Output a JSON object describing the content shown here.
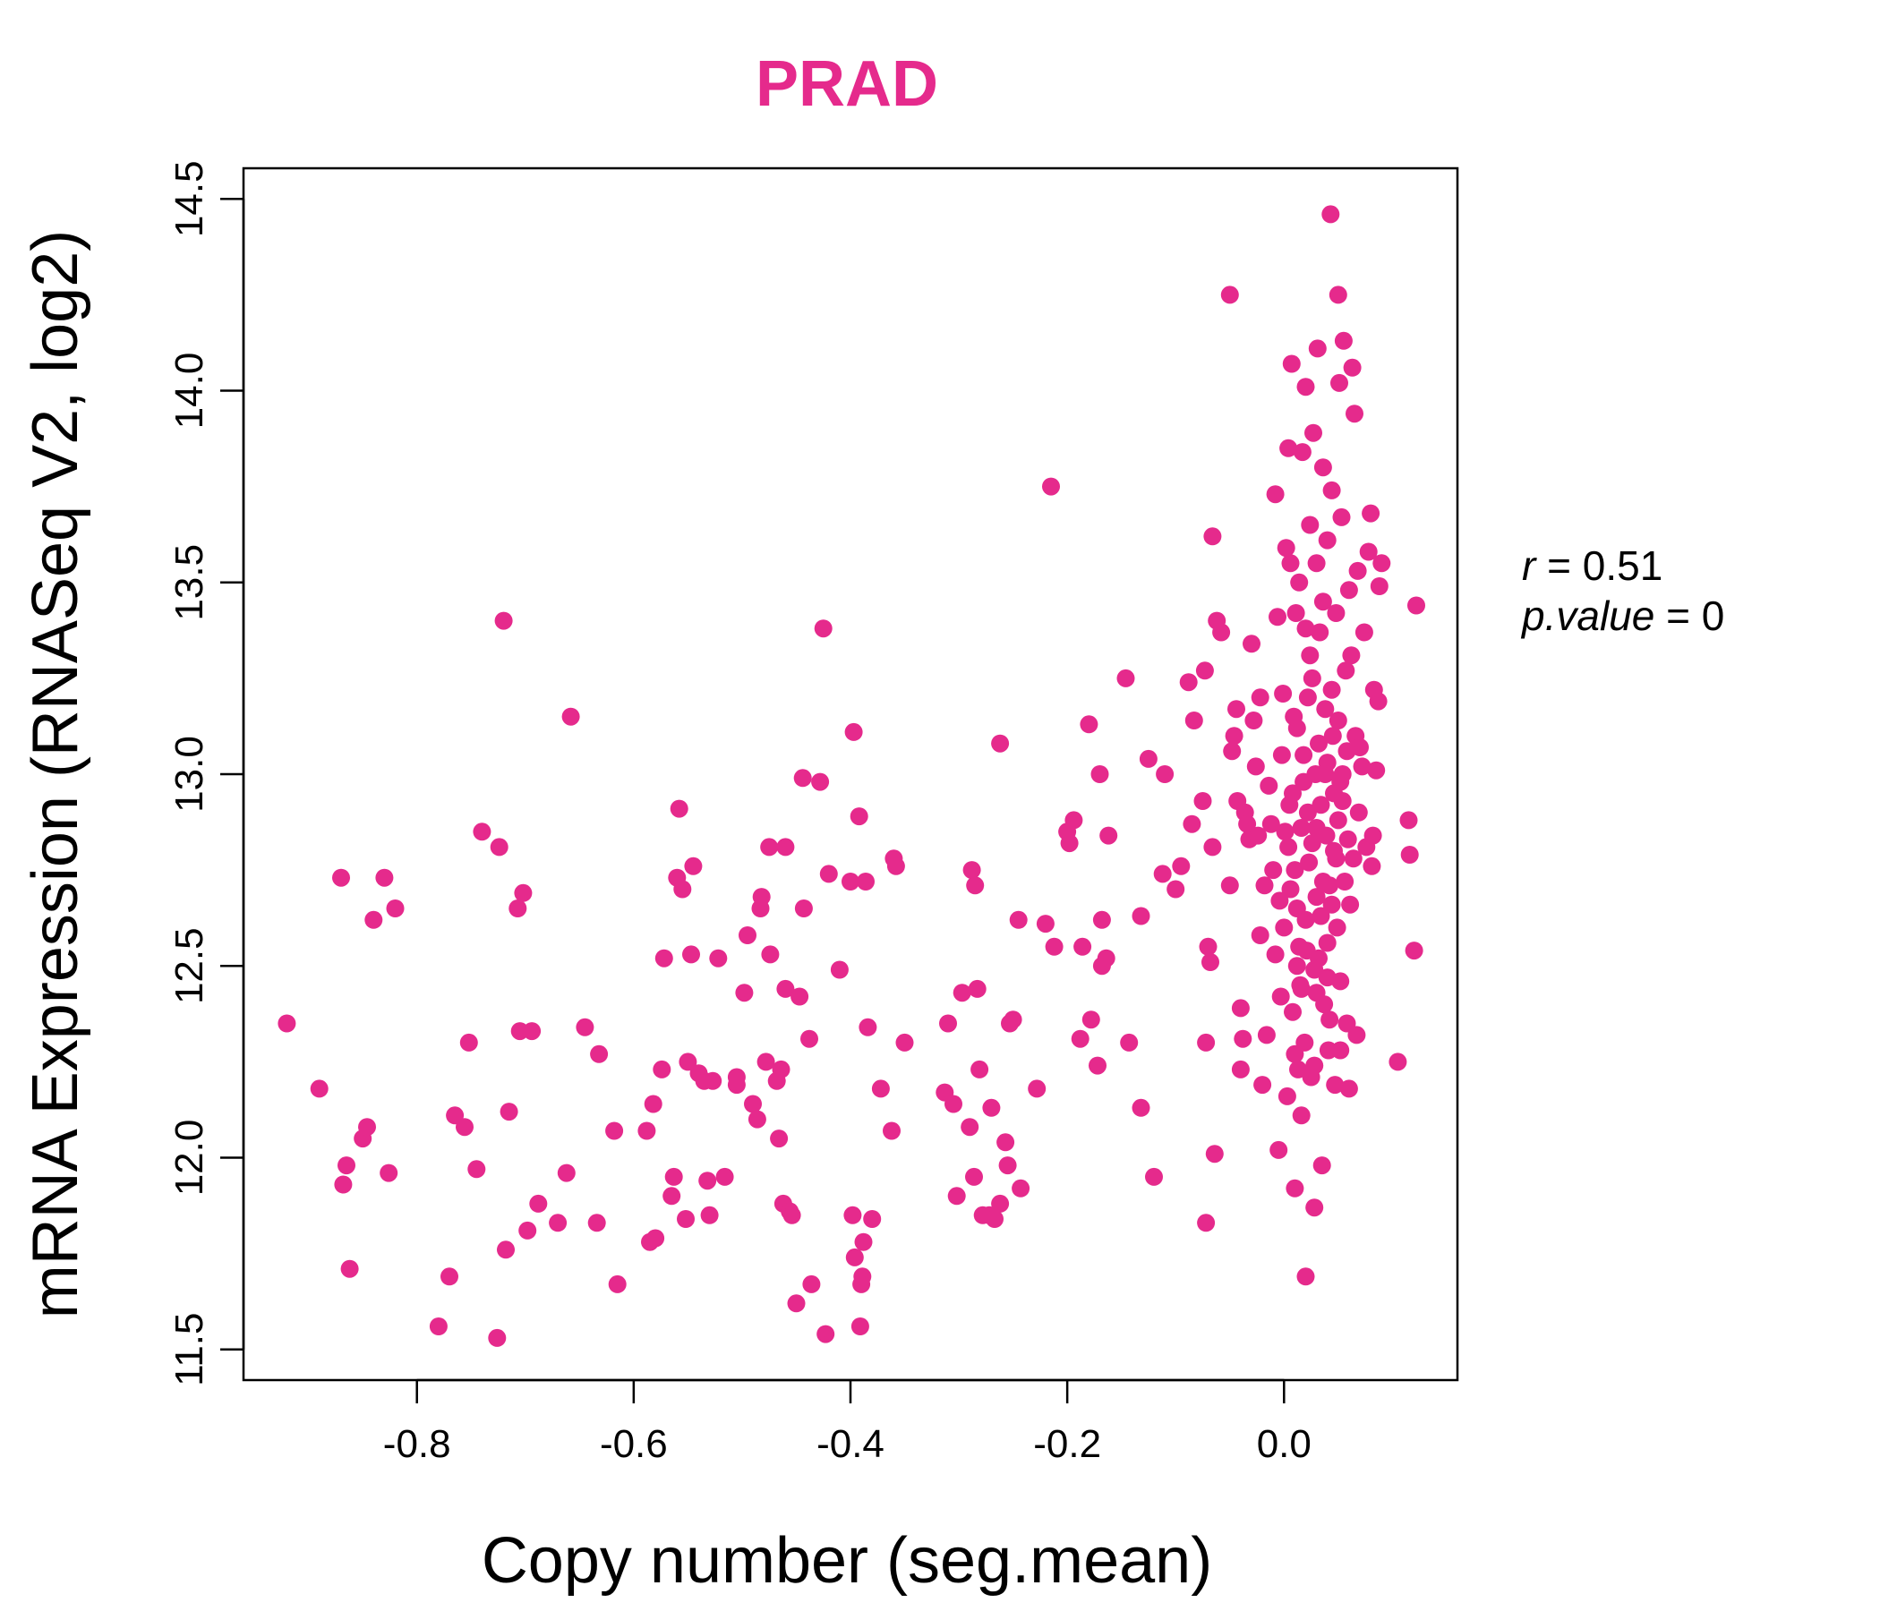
{
  "colors": {
    "point": "#E52A8C",
    "title": "#E52A8C",
    "axis": "#000000"
  },
  "stats": {
    "r_label": "r",
    "r_value": "0.51",
    "p_label": "p.value",
    "p_value": "0"
  },
  "chart_data": {
    "type": "scatter",
    "title": "PRAD",
    "xlabel": "Copy number (seg.mean)",
    "ylabel": "mRNA Expression (RNASeq V2, log2)",
    "xlim": [
      -0.96,
      0.16
    ],
    "ylim": [
      11.42,
      14.58
    ],
    "xticks": [
      -0.8,
      -0.6,
      -0.4,
      -0.2,
      0.0
    ],
    "xtick_labels": [
      "-0.8",
      "-0.6",
      "-0.4",
      "-0.2",
      "0.0"
    ],
    "yticks": [
      11.5,
      12.0,
      12.5,
      13.0,
      13.5,
      14.0,
      14.5
    ],
    "ytick_labels": [
      "11.5",
      "12.0",
      "12.5",
      "13.0",
      "13.5",
      "14.0",
      "14.5"
    ],
    "grid": false,
    "legend": "none",
    "points": [
      [
        -0.92,
        12.35
      ],
      [
        -0.89,
        12.18
      ],
      [
        -0.87,
        12.73
      ],
      [
        -0.865,
        11.98
      ],
      [
        -0.868,
        11.93
      ],
      [
        -0.862,
        11.71
      ],
      [
        -0.85,
        12.05
      ],
      [
        -0.846,
        12.08
      ],
      [
        -0.84,
        12.62
      ],
      [
        -0.83,
        12.73
      ],
      [
        -0.826,
        11.96
      ],
      [
        -0.82,
        12.65
      ],
      [
        -0.78,
        11.56
      ],
      [
        -0.77,
        11.69
      ],
      [
        -0.765,
        12.11
      ],
      [
        -0.756,
        12.08
      ],
      [
        -0.752,
        12.3
      ],
      [
        -0.745,
        11.97
      ],
      [
        -0.74,
        12.85
      ],
      [
        -0.726,
        11.53
      ],
      [
        -0.724,
        12.81
      ],
      [
        -0.718,
        11.76
      ],
      [
        -0.72,
        13.4
      ],
      [
        -0.715,
        12.12
      ],
      [
        -0.707,
        12.65
      ],
      [
        -0.705,
        12.33
      ],
      [
        -0.702,
        12.69
      ],
      [
        -0.698,
        11.81
      ],
      [
        -0.694,
        12.33
      ],
      [
        -0.688,
        11.88
      ],
      [
        -0.67,
        11.83
      ],
      [
        -0.662,
        11.96
      ],
      [
        -0.658,
        13.15
      ],
      [
        -0.645,
        12.34
      ],
      [
        -0.634,
        11.83
      ],
      [
        -0.632,
        12.27
      ],
      [
        -0.618,
        12.07
      ],
      [
        -0.615,
        11.67
      ],
      [
        -0.588,
        12.07
      ],
      [
        -0.585,
        11.78
      ],
      [
        -0.582,
        12.14
      ],
      [
        -0.58,
        11.79
      ],
      [
        -0.574,
        12.23
      ],
      [
        -0.572,
        12.52
      ],
      [
        -0.565,
        11.9
      ],
      [
        -0.563,
        11.95
      ],
      [
        -0.56,
        12.73
      ],
      [
        -0.558,
        12.91
      ],
      [
        -0.555,
        12.7
      ],
      [
        -0.552,
        11.84
      ],
      [
        -0.55,
        12.25
      ],
      [
        -0.547,
        12.53
      ],
      [
        -0.545,
        12.76
      ],
      [
        -0.54,
        12.22
      ],
      [
        -0.535,
        12.2
      ],
      [
        -0.532,
        11.94
      ],
      [
        -0.53,
        11.85
      ],
      [
        -0.527,
        12.2
      ],
      [
        -0.522,
        12.52
      ],
      [
        -0.516,
        11.95
      ],
      [
        -0.505,
        12.21
      ],
      [
        -0.505,
        12.19
      ],
      [
        -0.498,
        12.43
      ],
      [
        -0.495,
        12.58
      ],
      [
        -0.49,
        12.14
      ],
      [
        -0.486,
        12.1
      ],
      [
        -0.483,
        12.65
      ],
      [
        -0.482,
        12.68
      ],
      [
        -0.478,
        12.25
      ],
      [
        -0.475,
        12.81
      ],
      [
        -0.474,
        12.53
      ],
      [
        -0.468,
        12.2
      ],
      [
        -0.466,
        12.05
      ],
      [
        -0.464,
        12.23
      ],
      [
        -0.462,
        11.88
      ],
      [
        -0.46,
        12.81
      ],
      [
        -0.46,
        12.44
      ],
      [
        -0.456,
        11.86
      ],
      [
        -0.454,
        11.85
      ],
      [
        -0.45,
        11.62
      ],
      [
        -0.447,
        12.42
      ],
      [
        -0.444,
        12.99
      ],
      [
        -0.443,
        12.65
      ],
      [
        -0.438,
        12.31
      ],
      [
        -0.436,
        11.67
      ],
      [
        -0.428,
        12.98
      ],
      [
        -0.425,
        13.38
      ],
      [
        -0.423,
        11.54
      ],
      [
        -0.42,
        12.74
      ],
      [
        -0.41,
        12.49
      ],
      [
        -0.4,
        12.72
      ],
      [
        -0.398,
        11.85
      ],
      [
        -0.397,
        13.11
      ],
      [
        -0.396,
        11.74
      ],
      [
        -0.392,
        12.89
      ],
      [
        -0.391,
        11.56
      ],
      [
        -0.39,
        11.67
      ],
      [
        -0.389,
        11.69
      ],
      [
        -0.388,
        11.78
      ],
      [
        -0.386,
        12.72
      ],
      [
        -0.384,
        12.34
      ],
      [
        -0.38,
        11.84
      ],
      [
        -0.372,
        12.18
      ],
      [
        -0.362,
        12.07
      ],
      [
        -0.36,
        12.78
      ],
      [
        -0.358,
        12.76
      ],
      [
        -0.35,
        12.3
      ],
      [
        -0.313,
        12.17
      ],
      [
        -0.31,
        12.35
      ],
      [
        -0.305,
        12.14
      ],
      [
        -0.302,
        11.9
      ],
      [
        -0.297,
        12.43
      ],
      [
        -0.29,
        12.08
      ],
      [
        -0.288,
        12.75
      ],
      [
        -0.286,
        11.95
      ],
      [
        -0.285,
        12.71
      ],
      [
        -0.283,
        12.44
      ],
      [
        -0.281,
        12.23
      ],
      [
        -0.278,
        11.85
      ],
      [
        -0.272,
        11.85
      ],
      [
        -0.27,
        12.13
      ],
      [
        -0.267,
        11.84
      ],
      [
        -0.262,
        11.88
      ],
      [
        -0.262,
        13.08
      ],
      [
        -0.257,
        12.04
      ],
      [
        -0.255,
        11.98
      ],
      [
        -0.253,
        12.35
      ],
      [
        -0.25,
        12.36
      ],
      [
        -0.245,
        12.62
      ],
      [
        -0.243,
        11.92
      ],
      [
        -0.228,
        12.18
      ],
      [
        -0.22,
        12.61
      ],
      [
        -0.215,
        13.75
      ],
      [
        -0.212,
        12.55
      ],
      [
        -0.2,
        12.85
      ],
      [
        -0.198,
        12.82
      ],
      [
        -0.194,
        12.88
      ],
      [
        -0.188,
        12.31
      ],
      [
        -0.186,
        12.55
      ],
      [
        -0.18,
        13.13
      ],
      [
        -0.178,
        12.36
      ],
      [
        -0.172,
        12.24
      ],
      [
        -0.17,
        13.0
      ],
      [
        -0.168,
        12.62
      ],
      [
        -0.168,
        12.5
      ],
      [
        -0.164,
        12.52
      ],
      [
        -0.162,
        12.84
      ],
      [
        -0.146,
        13.25
      ],
      [
        -0.143,
        12.3
      ],
      [
        -0.132,
        12.13
      ],
      [
        -0.132,
        12.63
      ],
      [
        -0.125,
        13.04
      ],
      [
        -0.12,
        11.95
      ],
      [
        -0.112,
        12.74
      ],
      [
        -0.11,
        13.0
      ],
      [
        -0.1,
        12.7
      ],
      [
        -0.095,
        12.76
      ],
      [
        -0.088,
        13.24
      ],
      [
        -0.085,
        12.87
      ],
      [
        -0.083,
        13.14
      ],
      [
        -0.075,
        12.93
      ],
      [
        -0.073,
        13.27
      ],
      [
        -0.072,
        11.83
      ],
      [
        -0.072,
        12.3
      ],
      [
        -0.07,
        12.55
      ],
      [
        -0.068,
        12.51
      ],
      [
        -0.066,
        12.81
      ],
      [
        -0.066,
        13.62
      ],
      [
        -0.064,
        12.01
      ],
      [
        -0.062,
        13.4
      ],
      [
        -0.058,
        13.37
      ],
      [
        -0.05,
        14.25
      ],
      [
        -0.05,
        12.71
      ],
      [
        -0.048,
        13.06
      ],
      [
        -0.046,
        13.1
      ],
      [
        -0.044,
        13.17
      ],
      [
        -0.043,
        12.93
      ],
      [
        -0.04,
        12.39
      ],
      [
        -0.04,
        12.23
      ],
      [
        -0.038,
        12.31
      ],
      [
        -0.036,
        12.9
      ],
      [
        -0.034,
        12.87
      ],
      [
        -0.032,
        12.83
      ],
      [
        -0.03,
        13.34
      ],
      [
        -0.028,
        13.14
      ],
      [
        -0.026,
        13.02
      ],
      [
        -0.024,
        12.84
      ],
      [
        -0.022,
        12.58
      ],
      [
        -0.022,
        13.2
      ],
      [
        -0.02,
        12.19
      ],
      [
        -0.018,
        12.71
      ],
      [
        -0.016,
        12.32
      ],
      [
        -0.014,
        12.97
      ],
      [
        -0.012,
        12.87
      ],
      [
        -0.01,
        12.75
      ],
      [
        -0.008,
        12.53
      ],
      [
        -0.008,
        13.73
      ],
      [
        -0.006,
        13.41
      ],
      [
        -0.005,
        12.02
      ],
      [
        -0.004,
        12.67
      ],
      [
        -0.003,
        12.42
      ],
      [
        -0.002,
        13.05
      ],
      [
        -0.001,
        13.21
      ],
      [
        0.0,
        12.6
      ],
      [
        0.001,
        12.85
      ],
      [
        0.002,
        13.59
      ],
      [
        0.003,
        12.16
      ],
      [
        0.004,
        13.85
      ],
      [
        0.005,
        12.92
      ],
      [
        0.006,
        13.55
      ],
      [
        0.007,
        14.07
      ],
      [
        0.008,
        12.38
      ],
      [
        0.009,
        13.15
      ],
      [
        0.01,
        12.75
      ],
      [
        0.01,
        11.92
      ],
      [
        0.011,
        13.42
      ],
      [
        0.012,
        12.65
      ],
      [
        0.013,
        12.23
      ],
      [
        0.014,
        13.5
      ],
      [
        0.015,
        12.45
      ],
      [
        0.016,
        12.11
      ],
      [
        0.017,
        13.84
      ],
      [
        0.018,
        12.98
      ],
      [
        0.019,
        12.3
      ],
      [
        0.02,
        11.69
      ],
      [
        0.02,
        14.01
      ],
      [
        0.021,
        12.54
      ],
      [
        0.022,
        13.2
      ],
      [
        0.023,
        12.77
      ],
      [
        0.024,
        13.65
      ],
      [
        0.025,
        12.21
      ],
      [
        0.026,
        12.82
      ],
      [
        0.027,
        13.89
      ],
      [
        0.028,
        11.87
      ],
      [
        0.029,
        13.0
      ],
      [
        0.03,
        12.68
      ],
      [
        0.03,
        13.55
      ],
      [
        0.031,
        14.11
      ],
      [
        0.032,
        12.52
      ],
      [
        0.033,
        13.37
      ],
      [
        0.034,
        12.92
      ],
      [
        0.035,
        11.98
      ],
      [
        0.036,
        13.8
      ],
      [
        0.037,
        12.4
      ],
      [
        0.038,
        13.17
      ],
      [
        0.039,
        12.84
      ],
      [
        0.04,
        13.61
      ],
      [
        0.04,
        13.03
      ],
      [
        0.041,
        12.28
      ],
      [
        0.042,
        12.71
      ],
      [
        0.043,
        14.46
      ],
      [
        0.044,
        13.74
      ],
      [
        0.045,
        13.1
      ],
      [
        0.046,
        12.95
      ],
      [
        0.047,
        12.19
      ],
      [
        0.048,
        13.42
      ],
      [
        0.049,
        12.6
      ],
      [
        0.05,
        14.25
      ],
      [
        0.05,
        12.88
      ],
      [
        0.051,
        14.02
      ],
      [
        0.052,
        12.46
      ],
      [
        0.053,
        13.67
      ],
      [
        0.054,
        13.0
      ],
      [
        0.055,
        14.13
      ],
      [
        0.056,
        12.72
      ],
      [
        0.057,
        13.27
      ],
      [
        0.058,
        12.35
      ],
      [
        0.059,
        12.83
      ],
      [
        0.06,
        13.48
      ],
      [
        0.06,
        12.18
      ],
      [
        0.061,
        12.66
      ],
      [
        0.062,
        13.31
      ],
      [
        0.063,
        14.06
      ],
      [
        0.064,
        12.78
      ],
      [
        0.065,
        13.94
      ],
      [
        0.066,
        13.1
      ],
      [
        0.067,
        12.32
      ],
      [
        0.068,
        13.53
      ],
      [
        0.069,
        12.9
      ],
      [
        0.07,
        13.07
      ],
      [
        0.072,
        13.02
      ],
      [
        0.074,
        13.37
      ],
      [
        0.076,
        12.81
      ],
      [
        0.078,
        13.58
      ],
      [
        0.08,
        13.68
      ],
      [
        0.081,
        12.76
      ],
      [
        0.082,
        12.84
      ],
      [
        0.083,
        13.22
      ],
      [
        0.085,
        13.01
      ],
      [
        0.087,
        13.19
      ],
      [
        0.088,
        13.49
      ],
      [
        0.09,
        13.55
      ],
      [
        0.105,
        12.25
      ],
      [
        0.115,
        12.88
      ],
      [
        0.116,
        12.79
      ],
      [
        0.12,
        12.54
      ],
      [
        0.122,
        13.44
      ],
      [
        0.008,
        12.95
      ],
      [
        0.012,
        13.12
      ],
      [
        0.016,
        12.86
      ],
      [
        0.02,
        12.62
      ],
      [
        0.024,
        13.31
      ],
      [
        0.028,
        12.49
      ],
      [
        0.032,
        13.08
      ],
      [
        0.036,
        12.72
      ],
      [
        0.04,
        12.56
      ],
      [
        0.044,
        13.22
      ],
      [
        0.048,
        12.78
      ],
      [
        0.052,
        12.98
      ],
      [
        0.01,
        12.27
      ],
      [
        0.014,
        12.55
      ],
      [
        0.018,
        13.05
      ],
      [
        0.022,
        12.9
      ],
      [
        0.026,
        13.25
      ],
      [
        0.03,
        12.43
      ],
      [
        0.034,
        12.63
      ],
      [
        0.038,
        13.0
      ],
      [
        0.042,
        12.36
      ],
      [
        0.046,
        12.8
      ],
      [
        0.05,
        13.14
      ],
      [
        0.054,
        12.93
      ],
      [
        0.006,
        12.7
      ],
      [
        0.012,
        12.5
      ],
      [
        0.02,
        13.38
      ],
      [
        0.028,
        12.24
      ],
      [
        0.036,
        13.45
      ],
      [
        0.044,
        12.66
      ],
      [
        0.052,
        12.28
      ],
      [
        0.058,
        13.06
      ],
      [
        0.004,
        12.81
      ],
      [
        0.016,
        12.44
      ],
      [
        0.03,
        12.86
      ],
      [
        0.04,
        12.47
      ]
    ]
  }
}
